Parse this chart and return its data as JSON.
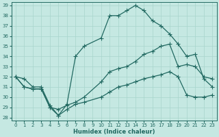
{
  "xlabel": "Humidex (Indice chaleur)",
  "background_color": "#c5e8e2",
  "grid_color": "#a8d4cc",
  "line_color": "#206860",
  "xlim": [
    0,
    23
  ],
  "ylim": [
    28,
    39
  ],
  "xticks": [
    0,
    1,
    2,
    3,
    4,
    5,
    6,
    7,
    8,
    9,
    10,
    11,
    12,
    13,
    14,
    15,
    16,
    17,
    18,
    19,
    20,
    21,
    22,
    23
  ],
  "yticks": [
    28,
    29,
    30,
    31,
    32,
    33,
    34,
    35,
    36,
    37,
    38,
    39
  ],
  "line_top_x": [
    0,
    1,
    2,
    3,
    4,
    5,
    6,
    7,
    8,
    10,
    11,
    12,
    13,
    14,
    15,
    16,
    17,
    18,
    19,
    20,
    21,
    22,
    23
  ],
  "line_top_y": [
    32.0,
    31.8,
    31.0,
    31.0,
    29.2,
    28.2,
    29.3,
    34.0,
    35.0,
    35.8,
    38.0,
    38.0,
    38.5,
    39.0,
    38.5,
    37.5,
    37.0,
    36.2,
    35.2,
    34.0,
    34.2,
    31.8,
    31.0
  ],
  "line_mid_x": [
    0,
    1,
    2,
    3,
    4,
    5,
    6,
    7,
    8,
    10,
    11,
    12,
    13,
    14,
    15,
    16,
    17,
    18,
    19,
    20,
    21,
    22,
    23
  ],
  "line_mid_y": [
    32.0,
    31.0,
    30.8,
    30.8,
    29.0,
    28.8,
    29.2,
    29.5,
    30.0,
    31.5,
    32.5,
    32.8,
    33.0,
    33.5,
    34.2,
    34.5,
    35.0,
    35.2,
    33.0,
    33.2,
    33.0,
    32.0,
    31.8
  ],
  "line_bot_x": [
    0,
    1,
    2,
    3,
    4,
    5,
    6,
    7,
    8,
    10,
    11,
    12,
    13,
    14,
    15,
    16,
    17,
    18,
    19,
    20,
    21,
    22,
    23
  ],
  "line_bot_y": [
    32.0,
    31.0,
    30.8,
    30.8,
    29.0,
    28.2,
    28.8,
    29.3,
    29.5,
    30.0,
    30.5,
    31.0,
    31.2,
    31.5,
    31.8,
    32.0,
    32.2,
    32.5,
    32.0,
    30.2,
    30.0,
    30.0,
    30.2
  ],
  "marker_size": 2.5,
  "line_width": 0.9
}
